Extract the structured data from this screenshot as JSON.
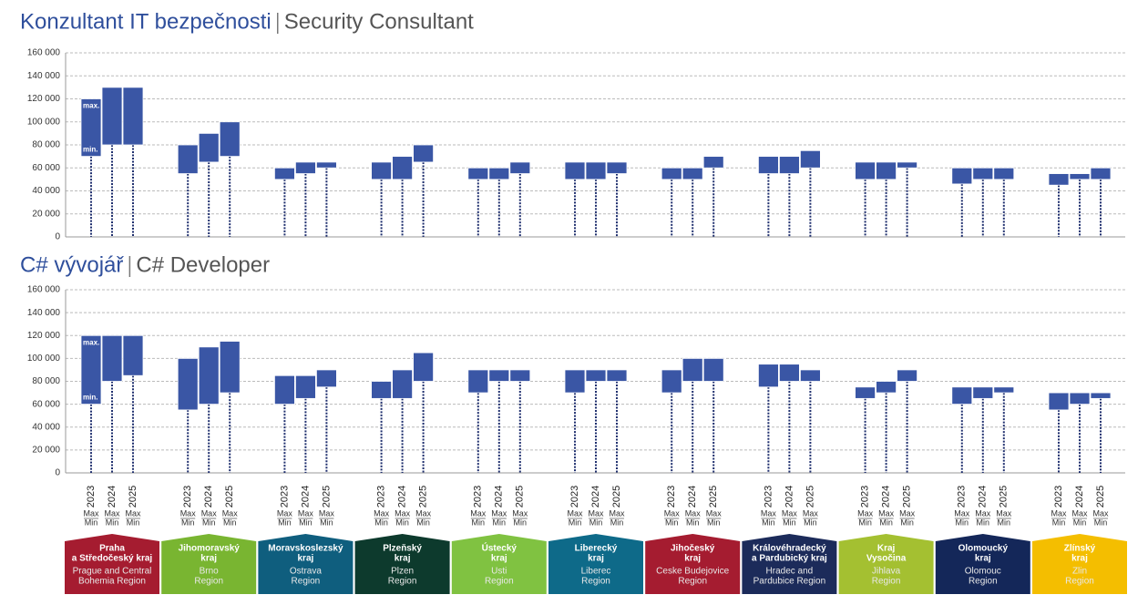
{
  "chart_data": [
    {
      "type": "range_bar",
      "title": "Konzultant IT bezpečnosti",
      "subtitle": "Security Consultant",
      "annotations": [
        "max.",
        "min."
      ],
      "ylim": [
        0,
        160000
      ],
      "yticks": [
        0,
        {
          "value": 20000,
          "label": "20 000"
        },
        {
          "value": 40000,
          "label": "40 000"
        },
        {
          "value": 60000,
          "label": "60 000"
        },
        {
          "value": 80000,
          "label": "80 000"
        },
        {
          "value": 100000,
          "label": "100 000"
        },
        {
          "value": 120000,
          "label": "120 000"
        },
        {
          "value": 140000,
          "label": "140 000"
        },
        {
          "value": 160000,
          "label": "160 000"
        }
      ],
      "grid": true,
      "series": [
        {
          "name": "2023",
          "color": "#3a56a5",
          "low": [
            70000,
            55000,
            50000,
            50000,
            50000,
            50000,
            50000,
            55000,
            50000,
            46000,
            45000
          ],
          "high": [
            120000,
            80000,
            60000,
            65000,
            60000,
            65000,
            60000,
            70000,
            65000,
            60000,
            55000
          ]
        },
        {
          "name": "2024",
          "color": "#3a56a5",
          "low": [
            80000,
            65000,
            55000,
            50000,
            50000,
            50000,
            50000,
            55000,
            50000,
            50000,
            50000
          ],
          "high": [
            130000,
            90000,
            65000,
            70000,
            60000,
            65000,
            60000,
            70000,
            65000,
            60000,
            55000
          ]
        },
        {
          "name": "2025",
          "color": "#3a56a5",
          "low": [
            80000,
            70000,
            60000,
            65000,
            55000,
            55000,
            60000,
            60000,
            60000,
            50000,
            50000
          ],
          "high": [
            130000,
            100000,
            65000,
            80000,
            65000,
            65000,
            70000,
            75000,
            65000,
            60000,
            60000
          ]
        }
      ]
    },
    {
      "type": "range_bar",
      "title": "C# vývojář",
      "subtitle": "C# Developer",
      "annotations": [
        "max.",
        "min."
      ],
      "ylim": [
        0,
        160000
      ],
      "yticks": [
        0,
        {
          "value": 20000,
          "label": "20 000"
        },
        {
          "value": 40000,
          "label": "40 000"
        },
        {
          "value": 60000,
          "label": "60 000"
        },
        {
          "value": 80000,
          "label": "80 000"
        },
        {
          "value": 100000,
          "label": "100 000"
        },
        {
          "value": 120000,
          "label": "120 000"
        },
        {
          "value": 140000,
          "label": "140 000"
        },
        {
          "value": 160000,
          "label": "160 000"
        }
      ],
      "grid": true,
      "series": [
        {
          "name": "2023",
          "color": "#3a56a5",
          "low": [
            60000,
            55000,
            60000,
            65000,
            70000,
            70000,
            70000,
            75000,
            65000,
            60000,
            55000
          ],
          "high": [
            120000,
            100000,
            85000,
            80000,
            90000,
            90000,
            90000,
            95000,
            75000,
            75000,
            70000
          ]
        },
        {
          "name": "2024",
          "color": "#3a56a5",
          "low": [
            80000,
            60000,
            65000,
            65000,
            80000,
            80000,
            80000,
            80000,
            70000,
            65000,
            60000
          ],
          "high": [
            120000,
            110000,
            85000,
            90000,
            90000,
            90000,
            100000,
            95000,
            80000,
            75000,
            70000
          ]
        },
        {
          "name": "2025",
          "color": "#3a56a5",
          "low": [
            85000,
            70000,
            75000,
            80000,
            80000,
            80000,
            80000,
            80000,
            80000,
            70000,
            65000
          ],
          "high": [
            120000,
            115000,
            90000,
            105000,
            90000,
            90000,
            100000,
            90000,
            90000,
            75000,
            70000
          ]
        }
      ]
    }
  ],
  "max_label": "Max",
  "min_label": "Min",
  "regions": [
    {
      "cz": [
        "Praha",
        "a Středočeský kraj"
      ],
      "en": [
        "Prague and Central",
        "Bohemia Region"
      ],
      "color": "#a51c30"
    },
    {
      "cz": [
        "Jihomoravský",
        "kraj"
      ],
      "en": [
        "Brno",
        "Region"
      ],
      "color": "#79b531"
    },
    {
      "cz": [
        "Moravskoslezský",
        "kraj"
      ],
      "en": [
        "Ostrava",
        "Region"
      ],
      "color": "#0f5e7e"
    },
    {
      "cz": [
        "Plzeňský",
        "kraj"
      ],
      "en": [
        "Plzen",
        "Region"
      ],
      "color": "#0d3a2d"
    },
    {
      "cz": [
        "Ústecký",
        "kraj"
      ],
      "en": [
        "Usti",
        "Region"
      ],
      "color": "#80c241"
    },
    {
      "cz": [
        "Liberecký",
        "kraj"
      ],
      "en": [
        "Liberec",
        "Region"
      ],
      "color": "#0e6a89"
    },
    {
      "cz": [
        "Jihočeský",
        "kraj"
      ],
      "en": [
        "Ceske Budejovice",
        "Region"
      ],
      "color": "#a51c30"
    },
    {
      "cz": [
        "Královéhradecký",
        "a Pardubický kraj"
      ],
      "en": [
        "Hradec and",
        "Pardubice Region"
      ],
      "color": "#1c2b5a"
    },
    {
      "cz": [
        "Kraj",
        "Vysočina"
      ],
      "en": [
        "Jihlava",
        "Region"
      ],
      "color": "#a4c031"
    },
    {
      "cz": [
        "Olomoucký",
        "kraj"
      ],
      "en": [
        "Olomouc",
        "Region"
      ],
      "color": "#142759"
    },
    {
      "cz": [
        "Zlínský",
        "kraj"
      ],
      "en": [
        "Zlin",
        "Region"
      ],
      "color": "#f4be00"
    }
  ]
}
